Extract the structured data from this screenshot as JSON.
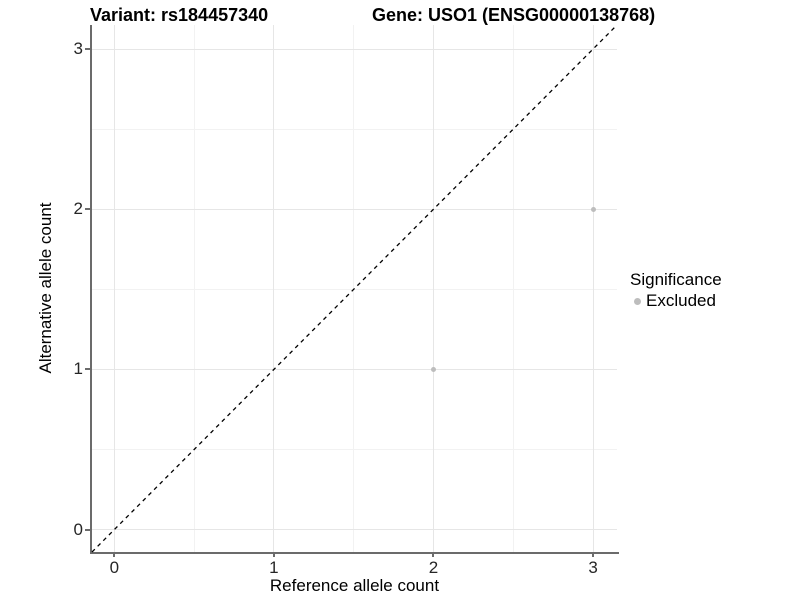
{
  "page": {
    "background": "#ffffff"
  },
  "chart_data": {
    "type": "scatter",
    "titles": {
      "left": "Variant: rs184457340",
      "right": "Gene: USO1 (ENSG00000138768)"
    },
    "xlabel": "Reference allele count",
    "ylabel": "Alternative allele count",
    "xlim": [
      -0.14,
      3.15
    ],
    "ylim": [
      -0.14,
      3.15
    ],
    "x_major_ticks": [
      0,
      1,
      2,
      3
    ],
    "y_major_ticks": [
      0,
      1,
      2,
      3
    ],
    "x_minor_gridlines": [
      0.5,
      1.5,
      2.5
    ],
    "y_minor_gridlines": [
      0.5,
      1.5,
      2.5
    ],
    "grid": "on",
    "identity_line": {
      "slope": 1,
      "intercept": 0,
      "style": "dashed",
      "color": "#000000"
    },
    "series": [
      {
        "name": "Excluded",
        "color": "#bdbdbd",
        "points": [
          {
            "x": 2,
            "y": 1
          },
          {
            "x": 3,
            "y": 2
          }
        ]
      }
    ],
    "legend": {
      "title": "Significance",
      "position": "right",
      "entries": [
        {
          "label": "Excluded",
          "color": "#bdbdbd"
        }
      ]
    },
    "colors": {
      "axis_line": "#6b6b6b",
      "tick_text": "#262626",
      "grid_major": "#e6e6e6",
      "grid_minor": "#f2f2f2",
      "point": "#bdbdbd"
    }
  }
}
